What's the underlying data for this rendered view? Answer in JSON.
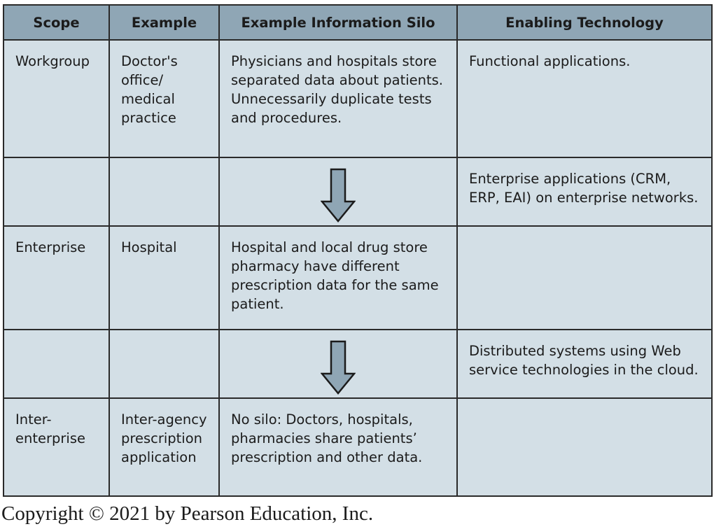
{
  "table": {
    "headers": [
      "Scope",
      "Example",
      "Example Information Silo",
      "Enabling Technology"
    ],
    "rows": [
      {
        "scope": [
          "Workgroup"
        ],
        "example": [
          "Doctor's",
          "office/",
          "medical",
          "practice"
        ],
        "silo": [
          "Physicians and hospitals store",
          "separated data about patients.",
          "Unnecessarily duplicate tests",
          "and procedures."
        ],
        "technology": [
          "Functional applications."
        ]
      },
      {
        "scope": [],
        "example": [],
        "silo": [],
        "technology": [
          "Enterprise applications (CRM,",
          "ERP, EAI) on enterprise networks."
        ],
        "arrow": true
      },
      {
        "scope": [
          "Enterprise"
        ],
        "example": [
          "Hospital"
        ],
        "silo": [
          "Hospital and local drug store",
          "pharmacy have different",
          "prescription data for the same",
          "patient."
        ],
        "technology": []
      },
      {
        "scope": [],
        "example": [],
        "silo": [],
        "technology": [
          "Distributed systems using Web",
          "service technologies in the cloud."
        ],
        "arrow": true
      },
      {
        "scope": [
          "Inter-",
          "enterprise"
        ],
        "example": [
          "Inter-agency",
          "prescription",
          "application"
        ],
        "silo": [
          "No silo: Doctors, hospitals,",
          "pharmacies share patients’",
          "prescription and other data."
        ],
        "technology": []
      }
    ]
  },
  "arrow_icon": "down-arrow-icon",
  "colors": {
    "header_bg": "#8fa6b5",
    "cell_bg": "#d3dfe6",
    "arrow_fill": "#8fa6b5",
    "border": "#2a2a2a"
  },
  "footer": {
    "copyright": "Copyright © 2021 by Pearson Education, Inc."
  }
}
